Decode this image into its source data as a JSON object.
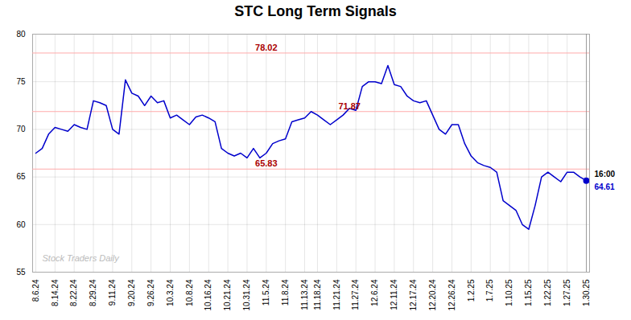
{
  "chart_data": {
    "type": "line",
    "title": "STC Long Term Signals",
    "color": "#0000cc",
    "grid": true,
    "ylim": [
      55,
      80
    ],
    "yticks": [
      55,
      60,
      65,
      70,
      75,
      80
    ],
    "categories": [
      "8.6.24",
      null,
      null,
      "8.14.24",
      null,
      null,
      "8.22.24",
      null,
      null,
      "8.29.24",
      null,
      null,
      "9.11.24",
      null,
      null,
      "9.20.24",
      null,
      null,
      "9.26.24",
      null,
      null,
      "10.3.24",
      null,
      null,
      "10.8.24",
      null,
      null,
      "10.16.24",
      null,
      null,
      "10.21.24",
      null,
      null,
      "10.31.24",
      null,
      null,
      "11.5.24",
      null,
      null,
      "11.8.24",
      null,
      null,
      "11.13.24",
      null,
      "11.18.24",
      null,
      null,
      "11.21.24",
      null,
      null,
      "11.27.24",
      null,
      null,
      "12.6.24",
      null,
      null,
      "12.11.24",
      null,
      null,
      "12.17.24",
      null,
      null,
      "12.20.24",
      null,
      null,
      "12.26.24",
      null,
      null,
      "1.2.25",
      null,
      null,
      "1.7.25",
      null,
      null,
      "1.10.25",
      null,
      null,
      "1.15.25",
      null,
      null,
      "1.22.25",
      null,
      null,
      "1.27.25",
      null,
      null,
      "1.30.25"
    ],
    "values": [
      67.5,
      68.0,
      69.5,
      70.2,
      70.0,
      69.8,
      70.5,
      70.2,
      70.0,
      73.0,
      72.8,
      72.5,
      70.0,
      69.5,
      75.2,
      73.8,
      73.5,
      72.5,
      73.5,
      72.8,
      73.0,
      71.2,
      71.5,
      71.0,
      70.5,
      71.3,
      71.5,
      71.2,
      70.8,
      68.0,
      67.5,
      67.2,
      67.5,
      67.0,
      68.0,
      67.0,
      67.5,
      68.5,
      68.8,
      69.0,
      70.8,
      71.0,
      71.2,
      71.87,
      71.5,
      71.0,
      70.5,
      71.0,
      71.5,
      72.2,
      72.0,
      74.5,
      75.0,
      75.0,
      74.8,
      76.7,
      74.7,
      74.5,
      73.5,
      73.0,
      72.8,
      73.0,
      71.5,
      70.0,
      69.5,
      70.5,
      70.5,
      68.5,
      67.2,
      66.5,
      66.2,
      66.0,
      65.5,
      62.5,
      62.0,
      61.5,
      60.0,
      59.5,
      62.0,
      65.0,
      65.5,
      65.0,
      64.5,
      65.5,
      65.5,
      65.0,
      64.61
    ],
    "reference_lines": [
      {
        "value": 78.02,
        "label": "78.02",
        "color": "#ffaaaa",
        "label_color": "#aa0000"
      },
      {
        "value": 71.87,
        "label": "71.87",
        "color": "#ffaaaa",
        "label_color": "#aa0000"
      },
      {
        "value": 65.83,
        "label": "65.83",
        "color": "#ffaaaa",
        "label_color": "#aa0000"
      }
    ],
    "last_point": {
      "label": "16:00",
      "value_label": "64.61",
      "color": "#0000cc"
    },
    "watermark": "Stock Traders Daily"
  }
}
